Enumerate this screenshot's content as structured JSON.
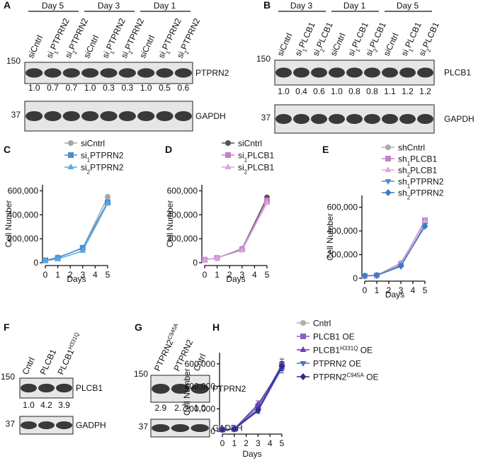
{
  "blots": [
    {
      "label": "A",
      "groups": [
        {
          "name": "Day 5",
          "lanes": [
            "siCntrl",
            [
              "si",
              {
                "sub": "1"
              },
              "PTPRN2"
            ],
            [
              "si",
              {
                "sub": "2"
              },
              "PTPRN2"
            ]
          ]
        },
        {
          "name": "Day 3",
          "lanes": [
            "siCntrl",
            [
              "si",
              {
                "sub": "1"
              },
              "PTPRN2"
            ],
            [
              "si",
              {
                "sub": "2"
              },
              "PTPRN2"
            ]
          ]
        },
        {
          "name": "Day 1",
          "lanes": [
            "siCntrl",
            [
              "si",
              {
                "sub": "1"
              },
              "PTPRN2"
            ],
            [
              "si",
              {
                "sub": "2"
              },
              "PTPRN2"
            ]
          ]
        }
      ],
      "rows": [
        {
          "mw": "150",
          "protein": "PTPRN2",
          "quant": [
            "1.0",
            "0.7",
            "0.7",
            "1.0",
            "0.3",
            "0.3",
            "1.0",
            "0.5",
            "0.6"
          ]
        },
        {
          "mw": "37",
          "protein": "GAPDH"
        }
      ]
    },
    {
      "label": "B",
      "groups": [
        {
          "name": "Day 3",
          "lanes": [
            "siCntrl",
            [
              "si",
              {
                "sub": "1"
              },
              "PLCB1"
            ],
            [
              "si",
              {
                "sub": "2"
              },
              "PLCB1"
            ]
          ]
        },
        {
          "name": "Day 1",
          "lanes": [
            "siCntrl",
            [
              "si",
              {
                "sub": "1"
              },
              "PLCB1"
            ],
            [
              "si",
              {
                "sub": "2"
              },
              "PLCB1"
            ]
          ]
        },
        {
          "name": "Day 5",
          "lanes": [
            "siCntrl",
            [
              "si",
              {
                "sub": "1"
              },
              "PLCB1"
            ],
            [
              "si",
              {
                "sub": "2"
              },
              "PLCB1"
            ]
          ]
        }
      ],
      "rows": [
        {
          "mw": "150",
          "protein": "PLCB1",
          "quant": [
            "1.0",
            "0.4",
            "0.6",
            "1.0",
            "0.8",
            "0.8",
            "1.1",
            "1.2",
            "1.2"
          ]
        },
        {
          "mw": "37",
          "protein": "GAPDH"
        }
      ]
    },
    {
      "label": "F",
      "groups": [
        {
          "lanes": [
            "Cntrl",
            "PLCB1",
            [
              "PLCB1",
              {
                "sup": "H331Q"
              }
            ]
          ]
        }
      ],
      "rows": [
        {
          "mw": "150",
          "protein": "PLCB1",
          "quant": [
            "1.0",
            "4.2",
            "3.9"
          ]
        },
        {
          "mw": "37",
          "protein": "GADPH"
        }
      ]
    },
    {
      "label": "G",
      "groups": [
        {
          "lanes": [
            [
              "PTPRN2",
              {
                "sup": "C945A"
              }
            ],
            "PTPRN2",
            "Cntrl"
          ]
        }
      ],
      "rows": [
        {
          "mw": "150",
          "protein": "PTPRN2",
          "quant": [
            "2.9",
            "2.7",
            "1.0"
          ]
        },
        {
          "mw": "37",
          "protein": "GADPH"
        }
      ]
    }
  ],
  "chart_data": [
    {
      "label": "C",
      "type": "line",
      "xlabel": "Days",
      "ylabel": "Cell Number",
      "x": [
        0,
        1,
        3,
        5
      ],
      "xlim": [
        0,
        5
      ],
      "xticks": [
        0,
        1,
        2,
        3,
        4,
        5
      ],
      "ylim": [
        0,
        650000
      ],
      "yticks": [
        0,
        {
          "value": 200000,
          "label": "200,000"
        },
        {
          "value": 400000,
          "label": "400,000"
        },
        {
          "value": 600000,
          "label": "600,000"
        }
      ],
      "series": [
        {
          "name": "siCntrl",
          "color": "#a6a6a6",
          "marker": "circle",
          "values": [
            20000,
            45000,
            120000,
            550000
          ]
        },
        {
          "name": [
            "si",
            {
              "sub": "1"
            },
            "PTPRN2"
          ],
          "color": "#4a8fd0",
          "marker": "square",
          "values": [
            20000,
            40000,
            125000,
            505000
          ]
        },
        {
          "name": [
            "si",
            {
              "sub": "2"
            },
            "PTPRN2"
          ],
          "color": "#5aa8e0",
          "marker": "triangle",
          "values": [
            18000,
            30000,
            100000,
            495000
          ]
        }
      ]
    },
    {
      "label": "D",
      "type": "line",
      "xlabel": "Days",
      "ylabel": "Cell Number",
      "x": [
        0,
        1,
        3,
        5
      ],
      "xlim": [
        0,
        5
      ],
      "xticks": [
        0,
        1,
        2,
        3,
        4,
        5
      ],
      "ylim": [
        0,
        650000
      ],
      "yticks": [
        0,
        {
          "value": 200000,
          "label": "200,000"
        },
        {
          "value": 400000,
          "label": "400,000"
        },
        {
          "value": 600000,
          "label": "600,000"
        }
      ],
      "series": [
        {
          "name": "siCntrl",
          "color": "#555555",
          "marker": "circle",
          "values": [
            25000,
            40000,
            115000,
            545000
          ]
        },
        {
          "name": [
            "si",
            {
              "sub": "1"
            },
            "PLCB1"
          ],
          "color": "#c77fcb",
          "marker": "square",
          "values": [
            25000,
            40000,
            110000,
            520000
          ]
        },
        {
          "name": [
            "si",
            {
              "sub": "2"
            },
            "PLCB1"
          ],
          "color": "#d9a3dc",
          "marker": "triangle",
          "values": [
            25000,
            40000,
            105000,
            500000
          ]
        }
      ]
    },
    {
      "label": "E",
      "type": "line",
      "xlabel": "Days",
      "ylabel": "Cell Number",
      "x": [
        0,
        1,
        3,
        5
      ],
      "xlim": [
        0,
        5
      ],
      "xticks": [
        0,
        1,
        2,
        3,
        4,
        5
      ],
      "ylim": [
        0,
        700000
      ],
      "yticks": [
        0,
        {
          "value": 200000,
          "label": "200,000"
        },
        {
          "value": 400000,
          "label": "400,000"
        },
        {
          "value": 600000,
          "label": "600,000"
        }
      ],
      "series": [
        {
          "name": "shCntrl",
          "color": "#aaaaaa",
          "marker": "circle",
          "values": [
            20000,
            25000,
            130000,
            470000
          ]
        },
        {
          "name": [
            "sh",
            {
              "sub": "1"
            },
            "PLCB1"
          ],
          "color": "#c77fcb",
          "marker": "square",
          "values": [
            20000,
            25000,
            115000,
            490000
          ]
        },
        {
          "name": [
            "sh",
            {
              "sub": "2"
            },
            "PLCB1"
          ],
          "color": "#dcaadf",
          "marker": "triangle",
          "values": [
            20000,
            25000,
            110000,
            480000
          ]
        },
        {
          "name": [
            "sh",
            {
              "sub": "1"
            },
            "PTPRN2"
          ],
          "color": "#4a8fd0",
          "marker": "triangle-down",
          "values": [
            20000,
            25000,
            100000,
            450000
          ]
        },
        {
          "name": [
            "sh",
            {
              "sub": "2"
            },
            "PTPRN2"
          ],
          "color": "#3b7cc4",
          "marker": "diamond",
          "values": [
            20000,
            25000,
            105000,
            440000
          ]
        }
      ]
    },
    {
      "label": "H",
      "type": "line",
      "xlabel": "Days",
      "ylabel": "Cell Number",
      "x": [
        0,
        1,
        3,
        5
      ],
      "xlim": [
        0,
        5
      ],
      "xticks": [
        0,
        1,
        2,
        3,
        4,
        5
      ],
      "ylim": [
        0,
        700000
      ],
      "yticks": [
        0,
        {
          "value": 200000,
          "label": "200,000"
        },
        {
          "value": 400000,
          "label": "400,000"
        },
        {
          "value": 600000,
          "label": "600,000"
        }
      ],
      "series": [
        {
          "name": "Cntrl",
          "color": "#b0b0b0",
          "marker": "circle",
          "values": [
            15000,
            20000,
            200000,
            600000
          ],
          "errors": [
            0,
            0,
            30000,
            50000
          ]
        },
        {
          "name": "PLCB1 OE",
          "color": "#8a5fc7",
          "marker": "square",
          "values": [
            15000,
            20000,
            220000,
            590000
          ],
          "errors": [
            0,
            0,
            30000,
            50000
          ]
        },
        {
          "name": [
            "PLCB1",
            {
              "sup": "H331Q"
            },
            " OE"
          ],
          "color": "#6a3fb0",
          "marker": "triangle",
          "values": [
            15000,
            20000,
            240000,
            570000
          ],
          "errors": [
            0,
            0,
            30000,
            50000
          ]
        },
        {
          "name": "PTPRN2 OE",
          "color": "#4a6fd0",
          "marker": "triangle-down",
          "values": [
            15000,
            18000,
            180000,
            560000
          ],
          "errors": [
            0,
            0,
            20000,
            40000
          ]
        },
        {
          "name": [
            "PTPRN2",
            {
              "sup": "C945A"
            },
            " OE"
          ],
          "color": "#2a2f8a",
          "marker": "diamond",
          "values": [
            15000,
            20000,
            190000,
            580000
          ],
          "errors": [
            0,
            0,
            20000,
            40000
          ]
        }
      ]
    }
  ]
}
